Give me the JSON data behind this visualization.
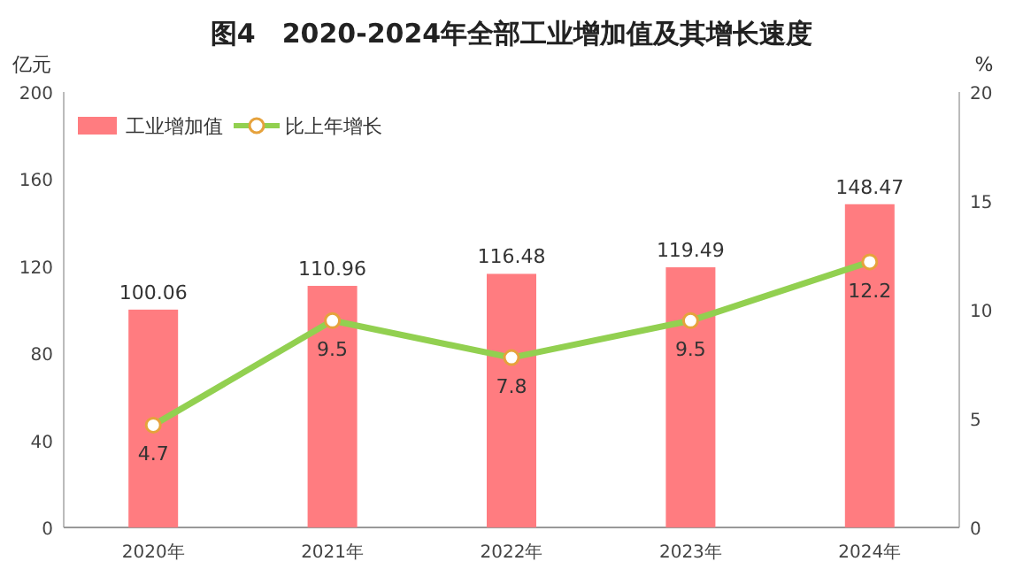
{
  "chart_data": {
    "type": "bar",
    "title": "图4　2020-2024年全部工业增加值及其增长速度",
    "ylabel": "亿元",
    "y2label": "%",
    "categories": [
      "2020年",
      "2021年",
      "2022年",
      "2023年",
      "2024年"
    ],
    "series": [
      {
        "name": "工业增加值",
        "color": "#ff7c80",
        "values": [
          100.06,
          110.96,
          116.48,
          119.49,
          148.47
        ]
      },
      {
        "name": "比上年增长",
        "type": "line",
        "axis": "y2",
        "color": "#92d050",
        "marker": "circle",
        "values": [
          4.7,
          9.5,
          7.8,
          9.5,
          12.2
        ]
      }
    ],
    "ylim": [
      0,
      200
    ],
    "yticks": [
      0,
      40,
      80,
      120,
      160,
      200
    ],
    "y2lim": [
      0,
      20
    ],
    "y2ticks": [
      0,
      5,
      10,
      15,
      20
    ],
    "data_labels": true,
    "legend": "top left",
    "grid": false
  }
}
